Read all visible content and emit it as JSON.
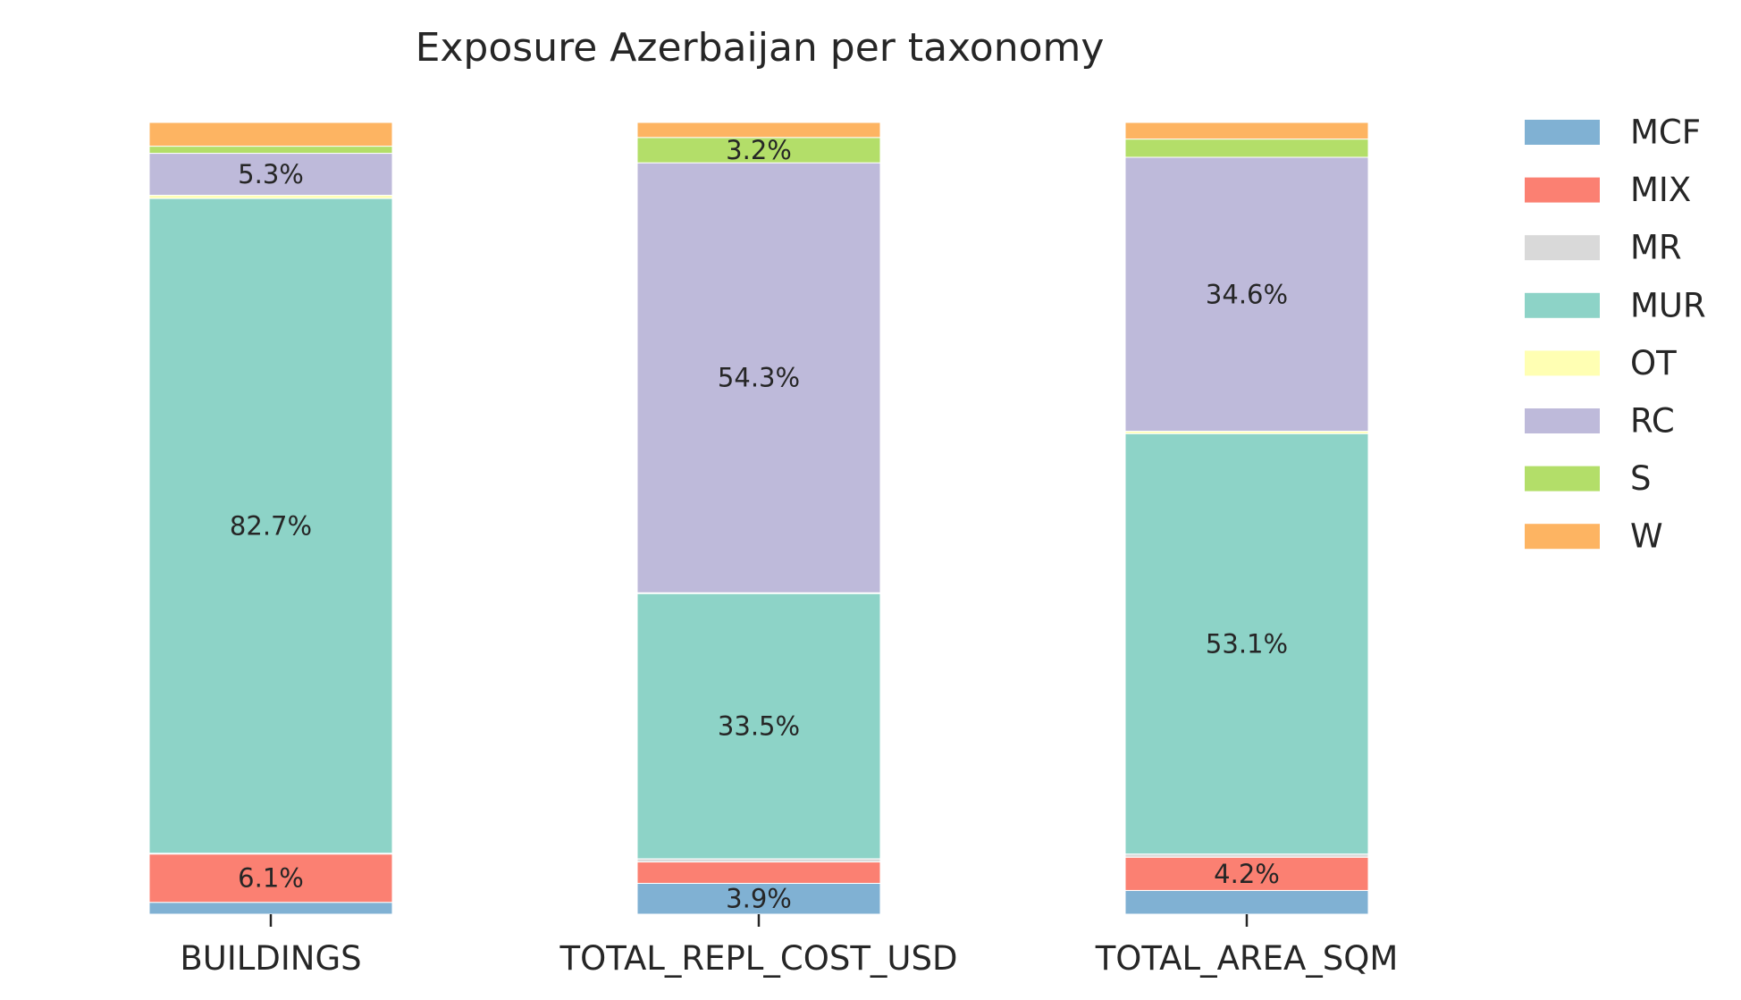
{
  "chart_data": {
    "type": "bar",
    "stacked": true,
    "normalized_percent": true,
    "title": "Exposure Azerbaijan per taxonomy",
    "xlabel": "",
    "ylabel": "",
    "ylim": [
      0,
      100
    ],
    "grid": false,
    "legend_position": "right",
    "categories": [
      "BUILDINGS",
      "TOTAL_REPL_COST_USD",
      "TOTAL_AREA_SQM"
    ],
    "series": [
      {
        "name": "MCF",
        "color": "#80b1d3",
        "values": [
          1.5,
          3.9,
          3.0
        ]
      },
      {
        "name": "MIX",
        "color": "#fb8072",
        "values": [
          6.1,
          2.7,
          4.2
        ]
      },
      {
        "name": "MR",
        "color": "#d9d9d9",
        "values": [
          0.1,
          0.4,
          0.4
        ]
      },
      {
        "name": "MUR",
        "color": "#8dd3c7",
        "values": [
          82.7,
          33.5,
          53.1
        ]
      },
      {
        "name": "OT",
        "color": "#ffffb3",
        "values": [
          0.4,
          0.1,
          0.3
        ]
      },
      {
        "name": "RC",
        "color": "#bebada",
        "values": [
          5.3,
          54.3,
          34.6
        ]
      },
      {
        "name": "S",
        "color": "#b3de69",
        "values": [
          0.9,
          3.2,
          2.3
        ]
      },
      {
        "name": "W",
        "color": "#fdb462",
        "values": [
          3.0,
          1.9,
          2.1
        ]
      }
    ],
    "labels": [
      {
        "category": 0,
        "series": 1,
        "text": "6.1%"
      },
      {
        "category": 0,
        "series": 3,
        "text": "82.7%"
      },
      {
        "category": 0,
        "series": 5,
        "text": "5.3%"
      },
      {
        "category": 1,
        "series": 0,
        "text": "3.9%"
      },
      {
        "category": 1,
        "series": 3,
        "text": "33.5%"
      },
      {
        "category": 1,
        "series": 5,
        "text": "54.3%"
      },
      {
        "category": 1,
        "series": 6,
        "text": "3.2%"
      },
      {
        "category": 2,
        "series": 1,
        "text": "4.2%"
      },
      {
        "category": 2,
        "series": 3,
        "text": "53.1%"
      },
      {
        "category": 2,
        "series": 5,
        "text": "34.6%"
      }
    ]
  }
}
